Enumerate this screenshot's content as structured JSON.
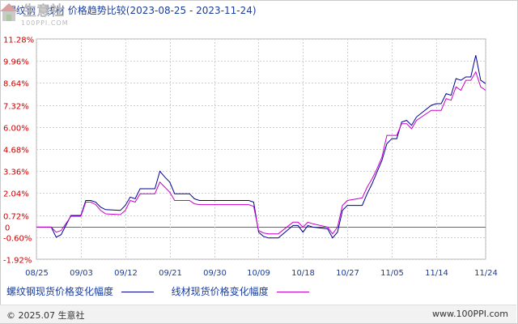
{
  "chart_data": {
    "type": "line",
    "title": "螺纹钢 - 线材 价格趋势比较(2023-08-25 - 2023-11-24)",
    "y_ticks": [
      "11.28%",
      "9.96%",
      "8.64%",
      "7.32%",
      "6.00%",
      "4.68%",
      "3.36%",
      "2.04%",
      "0.72%",
      "0",
      "-0.60%",
      "-1.92%"
    ],
    "y_tick_values": [
      11.28,
      9.96,
      8.64,
      7.32,
      6.0,
      4.68,
      3.36,
      2.04,
      0.72,
      0,
      -0.6,
      -1.92
    ],
    "ylim": [
      -1.92,
      11.28
    ],
    "x_ticks": [
      "08/25",
      "09/03",
      "09/12",
      "09/21",
      "09/30",
      "10/09",
      "10/18",
      "10/27",
      "11/05",
      "11/14",
      "11/24"
    ],
    "x_tick_dates": [
      "2023-08-25",
      "2023-09-03",
      "2023-09-12",
      "2023-09-21",
      "2023-09-30",
      "2023-10-09",
      "2023-10-18",
      "2023-10-27",
      "2023-11-05",
      "2023-11-14",
      "2023-11-24"
    ],
    "xlim": [
      "2023-08-25",
      "2023-11-24"
    ],
    "grid": true,
    "legend_position": "bottom",
    "series": [
      {
        "name": "螺纹钢现货价格变化幅度",
        "color": "#000099",
        "points": [
          [
            "2023-08-25",
            0
          ],
          [
            "2023-08-28",
            0.0
          ],
          [
            "2023-08-29",
            -0.6
          ],
          [
            "2023-08-30",
            -0.45
          ],
          [
            "2023-09-01",
            0.7
          ],
          [
            "2023-09-02",
            0.7
          ],
          [
            "2023-09-03",
            0.7
          ],
          [
            "2023-09-04",
            1.6
          ],
          [
            "2023-09-05",
            1.6
          ],
          [
            "2023-09-06",
            1.5
          ],
          [
            "2023-09-07",
            1.2
          ],
          [
            "2023-09-08",
            1.05
          ],
          [
            "2023-09-11",
            1.0
          ],
          [
            "2023-09-12",
            1.3
          ],
          [
            "2023-09-13",
            1.8
          ],
          [
            "2023-09-14",
            1.7
          ],
          [
            "2023-09-15",
            2.3
          ],
          [
            "2023-09-18",
            2.3
          ],
          [
            "2023-09-19",
            3.35
          ],
          [
            "2023-09-20",
            3.0
          ],
          [
            "2023-09-21",
            2.7
          ],
          [
            "2023-09-22",
            2.0
          ],
          [
            "2023-09-25",
            2.0
          ],
          [
            "2023-09-26",
            1.7
          ],
          [
            "2023-09-27",
            1.6
          ],
          [
            "2023-09-28",
            1.6
          ],
          [
            "2023-10-07",
            1.6
          ],
          [
            "2023-10-08",
            1.5
          ],
          [
            "2023-10-09",
            -0.3
          ],
          [
            "2023-10-10",
            -0.55
          ],
          [
            "2023-10-11",
            -0.65
          ],
          [
            "2023-10-12",
            -0.65
          ],
          [
            "2023-10-13",
            -0.65
          ],
          [
            "2023-10-16",
            0.1
          ],
          [
            "2023-10-17",
            0.1
          ],
          [
            "2023-10-18",
            -0.3
          ],
          [
            "2023-10-19",
            0.1
          ],
          [
            "2023-10-20",
            0.0
          ],
          [
            "2023-10-23",
            -0.1
          ],
          [
            "2023-10-24",
            -0.65
          ],
          [
            "2023-10-25",
            -0.3
          ],
          [
            "2023-10-26",
            1.0
          ],
          [
            "2023-10-27",
            1.3
          ],
          [
            "2023-10-30",
            1.3
          ],
          [
            "2023-10-31",
            2.0
          ],
          [
            "2023-11-01",
            2.6
          ],
          [
            "2023-11-02",
            3.3
          ],
          [
            "2023-11-03",
            4.0
          ],
          [
            "2023-11-04",
            5.0
          ],
          [
            "2023-11-05",
            5.3
          ],
          [
            "2023-11-06",
            5.3
          ],
          [
            "2023-11-07",
            6.3
          ],
          [
            "2023-11-08",
            6.4
          ],
          [
            "2023-11-09",
            6.1
          ],
          [
            "2023-11-10",
            6.6
          ],
          [
            "2023-11-13",
            7.3
          ],
          [
            "2023-11-14",
            7.4
          ],
          [
            "2023-11-15",
            7.4
          ],
          [
            "2023-11-16",
            8.0
          ],
          [
            "2023-11-17",
            7.9
          ],
          [
            "2023-11-18",
            8.9
          ],
          [
            "2023-11-19",
            8.8
          ],
          [
            "2023-11-20",
            9.0
          ],
          [
            "2023-11-21",
            9.0
          ],
          [
            "2023-11-22",
            10.3
          ],
          [
            "2023-11-23",
            8.8
          ],
          [
            "2023-11-24",
            8.6
          ]
        ]
      },
      {
        "name": "线材现货价格变化幅度",
        "color": "#cc00cc",
        "points": [
          [
            "2023-08-25",
            0
          ],
          [
            "2023-08-28",
            0.0
          ],
          [
            "2023-08-29",
            -0.3
          ],
          [
            "2023-08-30",
            -0.2
          ],
          [
            "2023-09-01",
            0.65
          ],
          [
            "2023-09-02",
            0.65
          ],
          [
            "2023-09-03",
            0.65
          ],
          [
            "2023-09-04",
            1.5
          ],
          [
            "2023-09-05",
            1.5
          ],
          [
            "2023-09-06",
            1.35
          ],
          [
            "2023-09-07",
            1.0
          ],
          [
            "2023-09-08",
            0.8
          ],
          [
            "2023-09-11",
            0.75
          ],
          [
            "2023-09-12",
            1.0
          ],
          [
            "2023-09-13",
            1.6
          ],
          [
            "2023-09-14",
            1.5
          ],
          [
            "2023-09-15",
            2.0
          ],
          [
            "2023-09-18",
            2.0
          ],
          [
            "2023-09-19",
            2.7
          ],
          [
            "2023-09-20",
            2.4
          ],
          [
            "2023-09-21",
            2.1
          ],
          [
            "2023-09-22",
            1.6
          ],
          [
            "2023-09-25",
            1.6
          ],
          [
            "2023-09-26",
            1.4
          ],
          [
            "2023-09-27",
            1.35
          ],
          [
            "2023-09-28",
            1.35
          ],
          [
            "2023-10-07",
            1.35
          ],
          [
            "2023-10-08",
            1.25
          ],
          [
            "2023-10-09",
            -0.2
          ],
          [
            "2023-10-10",
            -0.35
          ],
          [
            "2023-10-11",
            -0.4
          ],
          [
            "2023-10-12",
            -0.4
          ],
          [
            "2023-10-13",
            -0.4
          ],
          [
            "2023-10-16",
            0.3
          ],
          [
            "2023-10-17",
            0.3
          ],
          [
            "2023-10-18",
            0.0
          ],
          [
            "2023-10-19",
            0.3
          ],
          [
            "2023-10-20",
            0.2
          ],
          [
            "2023-10-23",
            0.0
          ],
          [
            "2023-10-24",
            -0.4
          ],
          [
            "2023-10-25",
            0.0
          ],
          [
            "2023-10-26",
            1.3
          ],
          [
            "2023-10-27",
            1.6
          ],
          [
            "2023-10-30",
            1.75
          ],
          [
            "2023-10-31",
            2.4
          ],
          [
            "2023-11-01",
            2.9
          ],
          [
            "2023-11-02",
            3.5
          ],
          [
            "2023-11-03",
            4.2
          ],
          [
            "2023-11-04",
            5.5
          ],
          [
            "2023-11-05",
            5.5
          ],
          [
            "2023-11-06",
            5.5
          ],
          [
            "2023-11-07",
            6.2
          ],
          [
            "2023-11-08",
            6.2
          ],
          [
            "2023-11-09",
            5.9
          ],
          [
            "2023-11-10",
            6.4
          ],
          [
            "2023-11-13",
            7.0
          ],
          [
            "2023-11-14",
            7.0
          ],
          [
            "2023-11-15",
            7.0
          ],
          [
            "2023-11-16",
            7.7
          ],
          [
            "2023-11-17",
            7.6
          ],
          [
            "2023-11-18",
            8.4
          ],
          [
            "2023-11-19",
            8.2
          ],
          [
            "2023-11-20",
            8.8
          ],
          [
            "2023-11-21",
            8.8
          ],
          [
            "2023-11-22",
            9.3
          ],
          [
            "2023-11-23",
            8.4
          ],
          [
            "2023-11-24",
            8.2
          ]
        ]
      }
    ]
  },
  "logo": {
    "name": "生意社",
    "site": "100PPI.COM"
  },
  "footer": {
    "copyright": "© 2025.07 生意社",
    "site": "www.100PPI.com"
  },
  "colors": {
    "title": "#1a3c9a",
    "axis_label": "#cc0000",
    "grid": "#d0d0d0"
  }
}
